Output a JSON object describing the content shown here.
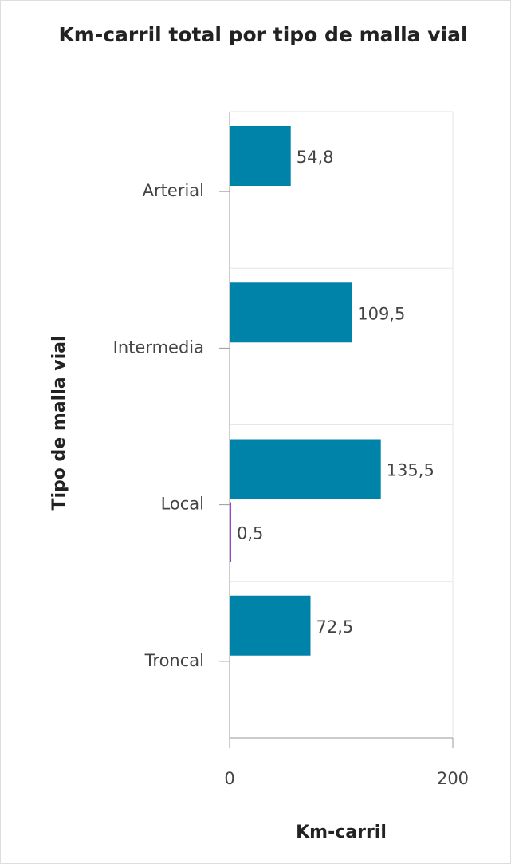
{
  "chart_data": {
    "type": "bar",
    "orientation": "horizontal",
    "title": "Km-carril total por tipo de malla vial",
    "x_label": "Km-carril",
    "y_label": "Tipo de malla vial",
    "categories": [
      "Arterial",
      "Intermedia",
      "Local",
      "Troncal"
    ],
    "series": [
      {
        "color": "#0083a8",
        "values": [
          54.8,
          109.5,
          135.5,
          72.5
        ],
        "value_labels": [
          "54,8",
          "109,5",
          "135,5",
          "72,5"
        ]
      },
      {
        "color": "#9b3fd6",
        "values": [
          null,
          null,
          0.5,
          null
        ],
        "value_labels": [
          null,
          null,
          "0,5",
          null
        ]
      }
    ],
    "xlim": [
      0,
      200
    ],
    "xticks": [
      0,
      200
    ],
    "grid": true
  }
}
